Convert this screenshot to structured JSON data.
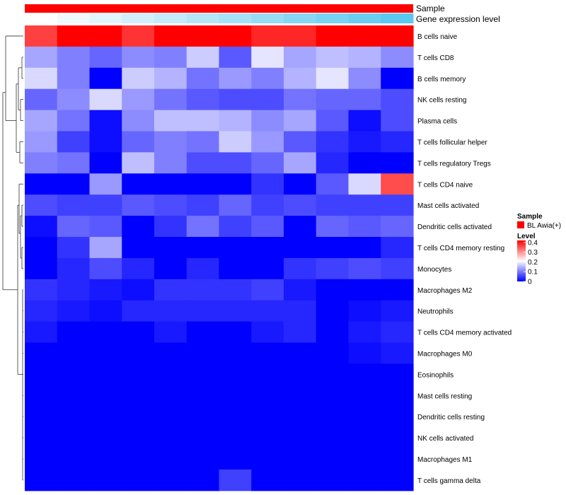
{
  "chart_data": {
    "type": "heatmap",
    "title": "",
    "annotation_tracks": [
      {
        "name": "Sample",
        "color": "#ff0000"
      },
      {
        "name": "Gene expression level",
        "gradient": [
          "#ffffff",
          "#5ac8f0"
        ]
      }
    ],
    "rows": [
      "B cells naive",
      "T cells CD8",
      "B cells memory",
      "NK cells resting",
      "Plasma cells",
      "T cells follicular helper",
      "T cells regulatory  Tregs",
      "T cells CD4 naive",
      "Mast cells activated",
      "Dendritic cells activated",
      "T cells CD4 memory resting",
      "Monocytes",
      "Macrophages M2",
      "Neutrophils",
      "T cells CD4 memory activated",
      "Macrophages M0",
      "Eosinophils",
      "Mast cells resting",
      "Dendritic cells resting",
      "NK cells activated",
      "Macrophages M1",
      "T cells gamma delta"
    ],
    "n_columns": 12,
    "values": [
      [
        0.35,
        0.55,
        0.55,
        0.36,
        0.45,
        0.5,
        0.45,
        0.37,
        0.37,
        0.45,
        0.52,
        0.48
      ],
      [
        0.13,
        0.1,
        0.08,
        0.11,
        0.1,
        0.16,
        0.07,
        0.18,
        0.13,
        0.15,
        0.14,
        0.11
      ],
      [
        0.17,
        0.1,
        0.0,
        0.16,
        0.14,
        0.09,
        0.12,
        0.1,
        0.14,
        0.18,
        0.11,
        0.0
      ],
      [
        0.08,
        0.11,
        0.17,
        0.12,
        0.09,
        0.07,
        0.06,
        0.06,
        0.09,
        0.08,
        0.08,
        0.06
      ],
      [
        0.13,
        0.09,
        0.01,
        0.11,
        0.15,
        0.15,
        0.14,
        0.11,
        0.13,
        0.07,
        0.01,
        0.06
      ],
      [
        0.12,
        0.05,
        0.01,
        0.08,
        0.1,
        0.09,
        0.16,
        0.12,
        0.07,
        0.04,
        0.02,
        0.03
      ],
      [
        0.1,
        0.09,
        0.0,
        0.15,
        0.1,
        0.06,
        0.06,
        0.08,
        0.13,
        0.03,
        0.0,
        0.0
      ],
      [
        0.0,
        0.0,
        0.12,
        0.0,
        0.0,
        0.0,
        0.0,
        0.04,
        0.0,
        0.07,
        0.17,
        0.34
      ],
      [
        0.06,
        0.05,
        0.05,
        0.07,
        0.06,
        0.05,
        0.08,
        0.05,
        0.06,
        0.05,
        0.05,
        0.05
      ],
      [
        0.01,
        0.08,
        0.07,
        0.0,
        0.04,
        0.09,
        0.05,
        0.07,
        0.0,
        0.08,
        0.07,
        0.08
      ],
      [
        0.0,
        0.04,
        0.13,
        0.0,
        0.0,
        0.0,
        0.0,
        0.0,
        0.0,
        0.0,
        0.0,
        0.03
      ],
      [
        0.0,
        0.03,
        0.06,
        0.03,
        0.0,
        0.03,
        0.0,
        0.0,
        0.04,
        0.05,
        0.06,
        0.05
      ],
      [
        0.04,
        0.03,
        0.02,
        0.01,
        0.04,
        0.04,
        0.04,
        0.05,
        0.02,
        0.0,
        0.0,
        0.0
      ],
      [
        0.03,
        0.02,
        0.01,
        0.03,
        0.03,
        0.03,
        0.03,
        0.03,
        0.03,
        0.0,
        0.01,
        0.02
      ],
      [
        0.02,
        0.0,
        0.0,
        0.0,
        0.02,
        0.0,
        0.0,
        0.02,
        0.03,
        0.0,
        0.02,
        0.03
      ],
      [
        0.0,
        0.0,
        0.0,
        0.0,
        0.0,
        0.0,
        0.0,
        0.0,
        0.0,
        0.0,
        0.01,
        0.02
      ],
      [
        0.0,
        0.0,
        0.0,
        0.0,
        0.0,
        0.0,
        0.0,
        0.0,
        0.0,
        0.0,
        0.0,
        0.0
      ],
      [
        0.0,
        0.0,
        0.0,
        0.0,
        0.0,
        0.0,
        0.0,
        0.0,
        0.0,
        0.0,
        0.0,
        0.0
      ],
      [
        0.0,
        0.0,
        0.0,
        0.0,
        0.0,
        0.0,
        0.0,
        0.0,
        0.0,
        0.0,
        0.0,
        0.0
      ],
      [
        0.0,
        0.0,
        0.0,
        0.0,
        0.0,
        0.0,
        0.0,
        0.0,
        0.0,
        0.0,
        0.0,
        0.0
      ],
      [
        0.0,
        0.0,
        0.0,
        0.0,
        0.0,
        0.0,
        0.0,
        0.0,
        0.0,
        0.0,
        0.0,
        0.0
      ],
      [
        0.0,
        0.0,
        0.0,
        0.0,
        0.0,
        0.0,
        0.05,
        0.0,
        0.0,
        0.0,
        0.0,
        0.0
      ]
    ],
    "color_scale": {
      "min": 0,
      "mid": 0.2,
      "max": 0.4,
      "low": "#0000ff",
      "mid_color": "#ffffff",
      "high": "#ff0000"
    },
    "legend": {
      "sample_title": "Sample",
      "sample_entry": "BL Awia(+)",
      "sample_color": "#ff0000",
      "level_title": "Level",
      "level_ticks": [
        "0.4",
        "0.3",
        "0.2",
        "0.1",
        "0"
      ],
      "level_tick_values": [
        0.4,
        0.3,
        0.2,
        0.1,
        0
      ],
      "placement": "right"
    }
  }
}
